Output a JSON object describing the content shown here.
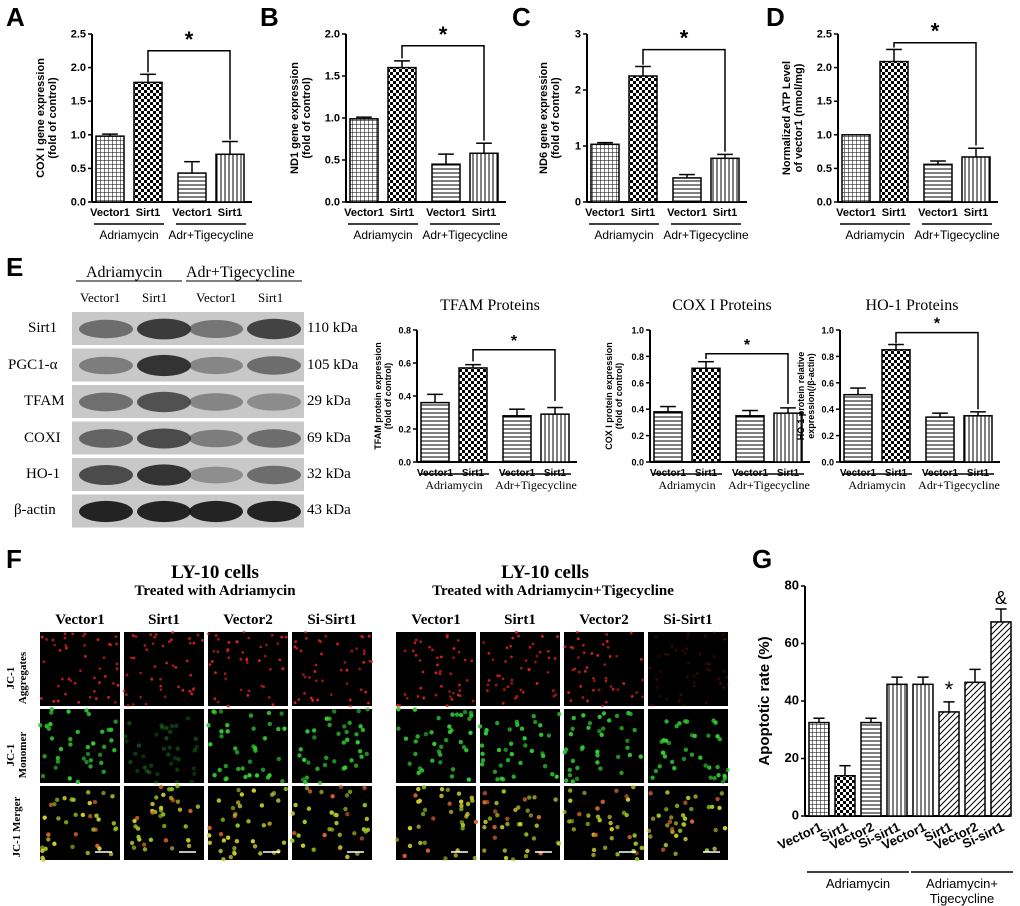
{
  "panels": {
    "A": {
      "letter": "A"
    },
    "B": {
      "letter": "B"
    },
    "C": {
      "letter": "C"
    },
    "D": {
      "letter": "D"
    },
    "E": {
      "letter": "E"
    },
    "F": {
      "letter": "F"
    },
    "G": {
      "letter": "G"
    }
  },
  "chart_data": [
    {
      "id": "A",
      "type": "bar",
      "ylabel": "COX I gene expression (fold of control)",
      "ylim": [
        0,
        2.5
      ],
      "yticks": [
        "0.0",
        "0.5",
        "1.0",
        "1.5",
        "2.0",
        "2.5"
      ],
      "categories": [
        "Vector1",
        "Sirt1",
        "Vector1",
        "Sirt1"
      ],
      "groups": [
        "Adriamycin",
        "Adr+Tigecycline"
      ],
      "values": [
        0.98,
        1.78,
        0.43,
        0.71
      ],
      "errors": [
        0.03,
        0.12,
        0.17,
        0.19
      ],
      "significance": "*"
    },
    {
      "id": "B",
      "type": "bar",
      "ylabel": "ND1 gene expression (fold of control)",
      "ylim": [
        0,
        2.0
      ],
      "yticks": [
        "0.0",
        "0.5",
        "1.0",
        "1.5",
        "2.0"
      ],
      "categories": [
        "Vector1",
        "Sirt1",
        "Vector1",
        "Sirt1"
      ],
      "groups": [
        "Adriamycin",
        "Adr+Tigecycline"
      ],
      "values": [
        0.99,
        1.6,
        0.45,
        0.58
      ],
      "errors": [
        0.02,
        0.08,
        0.12,
        0.12
      ],
      "significance": "*"
    },
    {
      "id": "C",
      "type": "bar",
      "ylabel": "ND6 gene expression (fold of control)",
      "ylim": [
        0,
        3
      ],
      "yticks": [
        "0",
        "1",
        "2",
        "3"
      ],
      "categories": [
        "Vector1",
        "Sirt1",
        "Vector1",
        "Sirt1"
      ],
      "groups": [
        "Adriamycin",
        "Adr+Tigecycline"
      ],
      "values": [
        1.03,
        2.25,
        0.43,
        0.78
      ],
      "errors": [
        0.03,
        0.17,
        0.06,
        0.07
      ],
      "significance": "*"
    },
    {
      "id": "D",
      "type": "bar",
      "ylabel": "Normalized ATP Level of vector1 (nmol/mg)",
      "ylim": [
        0,
        2.5
      ],
      "yticks": [
        "0.0",
        "0.5",
        "1.0",
        "1.5",
        "2.0",
        "2.5"
      ],
      "categories": [
        "Vector1",
        "Sirt1",
        "Vector1",
        "Sirt1"
      ],
      "groups": [
        "Adriamycin",
        "Adr+Tigecycline"
      ],
      "values": [
        1.0,
        2.09,
        0.56,
        0.67
      ],
      "errors": [
        0,
        0.18,
        0.05,
        0.13
      ],
      "significance": "*"
    },
    {
      "id": "E1",
      "type": "bar",
      "title": "TFAM Proteins",
      "ylabel": "TFAM protein expression (fold of control)",
      "ylim": [
        0,
        0.8
      ],
      "yticks": [
        "0.0",
        "0.2",
        "0.4",
        "0.6",
        "0.8"
      ],
      "categories": [
        "Vector1",
        "Sirt1",
        "Vector1",
        "Sirt1"
      ],
      "groups": [
        "Adriamycin",
        "Adr+Tigecycline"
      ],
      "values": [
        0.36,
        0.57,
        0.28,
        0.29
      ],
      "errors": [
        0.05,
        0.02,
        0.04,
        0.04
      ],
      "significance": "*"
    },
    {
      "id": "E2",
      "type": "bar",
      "title": "COX I Proteins",
      "ylabel": "COX I protein expression (fold of control)",
      "ylim": [
        0,
        1.0
      ],
      "yticks": [
        "0.0",
        "0.2",
        "0.4",
        "0.6",
        "0.8",
        "1.0"
      ],
      "categories": [
        "Vector1",
        "Sirt1",
        "Vector1",
        "Sirt1"
      ],
      "groups": [
        "Adriamycin",
        "Adr+Tigecycline"
      ],
      "values": [
        0.38,
        0.71,
        0.35,
        0.37
      ],
      "errors": [
        0.04,
        0.05,
        0.04,
        0.04
      ],
      "significance": "*"
    },
    {
      "id": "E3",
      "type": "bar",
      "title": "HO-1 Proteins",
      "ylabel": "HO-1 protein relative expression(/β-actin)",
      "ylim": [
        0,
        1.0
      ],
      "yticks": [
        "0.0",
        "0.2",
        "0.4",
        "0.6",
        "0.8",
        "1.0"
      ],
      "categories": [
        "Vector1",
        "Sirt1",
        "Vector1",
        "Sirt1"
      ],
      "groups": [
        "Adriamycin",
        "Adr+Tigecycline"
      ],
      "values": [
        0.51,
        0.85,
        0.34,
        0.35
      ],
      "errors": [
        0.05,
        0.04,
        0.03,
        0.03
      ],
      "significance": "*"
    },
    {
      "id": "G",
      "type": "bar",
      "ylabel": "Apoptotic rate (%)",
      "ylim": [
        0,
        80
      ],
      "yticks": [
        "0",
        "20",
        "40",
        "60",
        "80"
      ],
      "categories": [
        "Vector1",
        "Sirt1",
        "Vector2",
        "Si-sirt1",
        "Vector1",
        "Sirt1",
        "Vector2",
        "Si-sirt1"
      ],
      "groups": [
        "Adriamycin",
        "Adriamycin+\nTigecycline"
      ],
      "values": [
        32.5,
        14,
        32.5,
        45.8,
        45.8,
        36.2,
        46.5,
        67.5
      ],
      "errors": [
        1.5,
        3.5,
        1.5,
        2.5,
        2.5,
        3.5,
        4.5,
        4.5
      ],
      "annotations": [
        {
          "bar": 5,
          "text": "*"
        },
        {
          "bar": 7,
          "text": "&"
        }
      ]
    }
  ],
  "western": {
    "group1": "Adriamycin",
    "group2": "Adr+Tigecycline",
    "lanes": [
      "Vector1",
      "Sirt1",
      "Vector1",
      "Sirt1"
    ],
    "rows": [
      {
        "label": "Sirt1",
        "kda": "110 kDa"
      },
      {
        "label": "PGC1-α",
        "kda": "105 kDa"
      },
      {
        "label": "TFAM",
        "kda": "29 kDa"
      },
      {
        "label": "COXI",
        "kda": "69 kDa"
      },
      {
        "label": "HO-1",
        "kda": "32 kDa"
      },
      {
        "label": "β-actin",
        "kda": "43 kDa"
      }
    ]
  },
  "microscopy": {
    "left_title": "LY-10 cells",
    "left_sub": "Treated with  Adriamycin",
    "right_title": "LY-10 cells",
    "right_sub": "Treated with  Adriamycin+Tigecycline",
    "columns": [
      "Vector1",
      "Sirt1",
      "Vector2",
      "Si-Sirt1"
    ],
    "rows": [
      "JC-1 Aggregates",
      "JC-1 Monomer",
      "JC-1 Merger"
    ]
  }
}
